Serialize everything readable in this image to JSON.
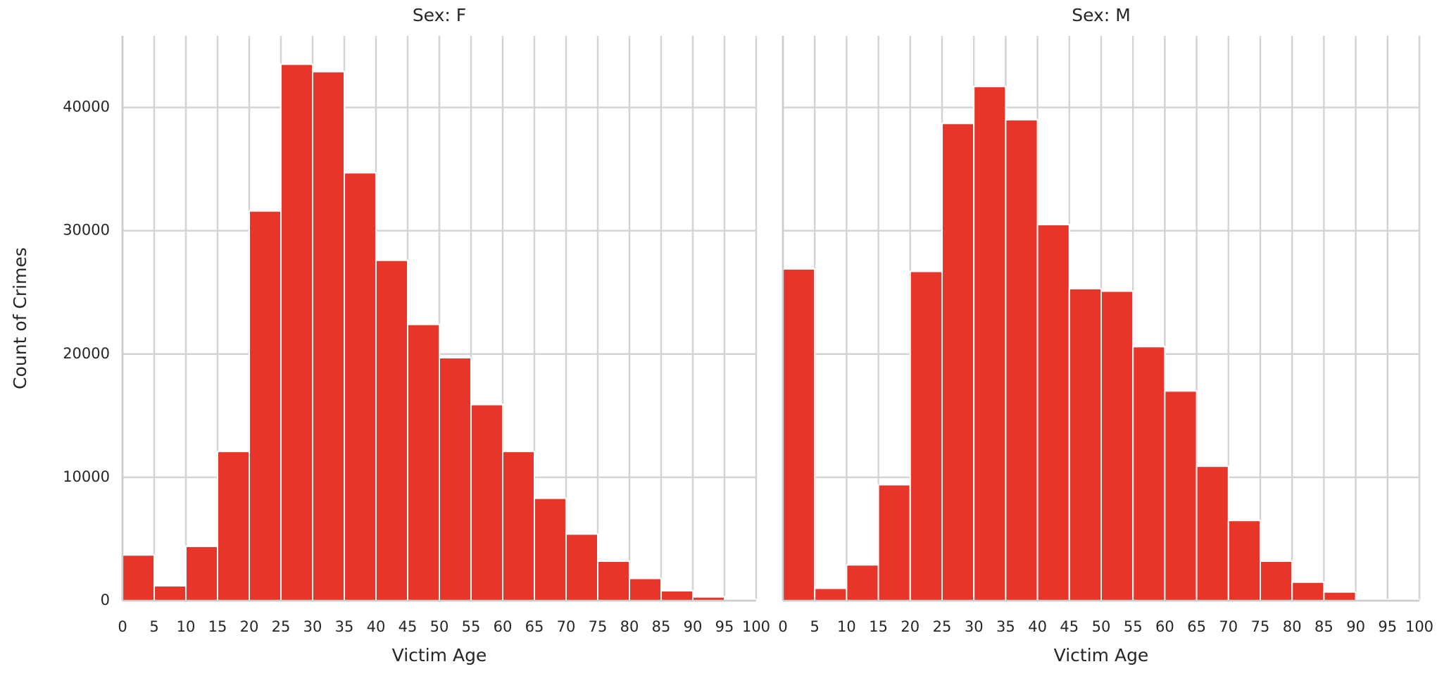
{
  "chart_data": [
    {
      "type": "histogram",
      "title": "Sex: F",
      "xlabel": "Victim Age",
      "ylabel": "Count of Crimes",
      "bins": [
        0,
        5,
        10,
        15,
        20,
        25,
        30,
        35,
        40,
        45,
        50,
        55,
        60,
        65,
        70,
        75,
        80,
        85,
        90,
        95,
        100
      ],
      "values": [
        3700,
        1200,
        4400,
        12100,
        31600,
        43500,
        42900,
        34700,
        27600,
        22400,
        19700,
        15900,
        12100,
        8300,
        5400,
        3200,
        1800,
        800,
        300,
        100
      ],
      "color": "#e8352a",
      "xlim": [
        0,
        100
      ],
      "xticks": [
        0,
        5,
        10,
        15,
        20,
        25,
        30,
        35,
        40,
        45,
        50,
        55,
        60,
        65,
        70,
        75,
        80,
        85,
        90,
        95,
        100
      ],
      "ylim": [
        0,
        45800
      ],
      "yticks": [
        0,
        10000,
        20000,
        30000,
        40000
      ],
      "grid": true
    },
    {
      "type": "histogram",
      "title": "Sex: M",
      "xlabel": "Victim Age",
      "bins": [
        0,
        5,
        10,
        15,
        20,
        25,
        30,
        35,
        40,
        45,
        50,
        55,
        60,
        65,
        70,
        75,
        80,
        85,
        90,
        95,
        100
      ],
      "values": [
        26900,
        1000,
        2900,
        9400,
        26700,
        38700,
        41700,
        39000,
        30500,
        25300,
        25100,
        20600,
        17000,
        10900,
        6500,
        3200,
        1500,
        700,
        100,
        50
      ],
      "color": "#e8352a",
      "xlim": [
        0,
        100
      ],
      "xticks": [
        0,
        5,
        10,
        15,
        20,
        25,
        30,
        35,
        40,
        45,
        50,
        55,
        60,
        65,
        70,
        75,
        80,
        85,
        90,
        95,
        100
      ],
      "grid": true
    }
  ]
}
